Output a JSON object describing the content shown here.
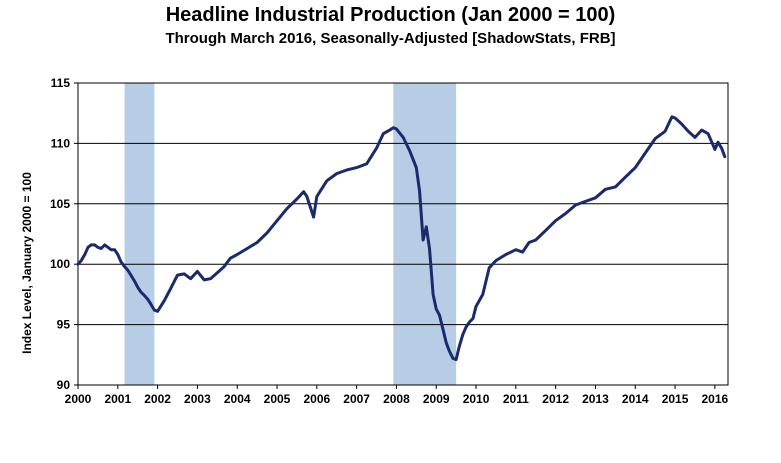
{
  "chart_data": {
    "type": "line",
    "title": "Headline Industrial Production (Jan 2000 = 100)",
    "subtitle": "Through March 2016, Seasonally-Adjusted [ShadowStats, FRB]",
    "xlabel": "",
    "ylabel": "Index Level, January 2000 = 100",
    "xlim": [
      2000,
      2016.33
    ],
    "ylim": [
      90,
      115
    ],
    "x_ticks": [
      2000,
      2001,
      2002,
      2003,
      2004,
      2005,
      2006,
      2007,
      2008,
      2009,
      2010,
      2011,
      2012,
      2013,
      2014,
      2015,
      2016
    ],
    "y_ticks": [
      90,
      95,
      100,
      105,
      110,
      115
    ],
    "grid": "horizontal",
    "legend": "none",
    "line_color": "#1a2a6c",
    "recession_color": "#b7cde6",
    "recessions": [
      {
        "start": 2001.17,
        "end": 2001.92
      },
      {
        "start": 2007.92,
        "end": 2009.5
      }
    ],
    "series": [
      {
        "x": [
          2000.0,
          2000.08,
          2000.17,
          2000.25,
          2000.33,
          2000.42,
          2000.5,
          2000.58,
          2000.67,
          2000.75,
          2000.83,
          2000.92,
          2001.0,
          2001.08,
          2001.17,
          2001.25,
          2001.33,
          2001.42,
          2001.5,
          2001.58,
          2001.67,
          2001.75,
          2001.83,
          2001.92,
          2002.0,
          2002.17,
          2002.33,
          2002.5,
          2002.67,
          2002.83,
          2003.0,
          2003.17,
          2003.33,
          2003.5,
          2003.67,
          2003.83,
          2004.0,
          2004.25,
          2004.5,
          2004.75,
          2005.0,
          2005.25,
          2005.5,
          2005.67,
          2005.75,
          2005.92,
          2006.0,
          2006.25,
          2006.5,
          2006.75,
          2007.0,
          2007.25,
          2007.5,
          2007.67,
          2007.83,
          2007.92,
          2008.0,
          2008.17,
          2008.33,
          2008.5,
          2008.58,
          2008.67,
          2008.75,
          2008.83,
          2008.92,
          2009.0,
          2009.08,
          2009.17,
          2009.25,
          2009.33,
          2009.42,
          2009.5,
          2009.58,
          2009.67,
          2009.75,
          2009.83,
          2009.92,
          2010.0,
          2010.17,
          2010.33,
          2010.5,
          2010.75,
          2011.0,
          2011.17,
          2011.33,
          2011.5,
          2011.75,
          2012.0,
          2012.25,
          2012.5,
          2012.75,
          2013.0,
          2013.25,
          2013.5,
          2013.75,
          2014.0,
          2014.25,
          2014.5,
          2014.75,
          2014.92,
          2015.0,
          2015.17,
          2015.33,
          2015.5,
          2015.67,
          2015.83,
          2016.0,
          2016.08,
          2016.17,
          2016.25
        ],
        "y": [
          100.0,
          100.3,
          100.8,
          101.4,
          101.6,
          101.6,
          101.4,
          101.3,
          101.6,
          101.4,
          101.2,
          101.2,
          100.8,
          100.2,
          99.8,
          99.5,
          99.1,
          98.6,
          98.1,
          97.7,
          97.4,
          97.1,
          96.7,
          96.2,
          96.1,
          97.0,
          98.0,
          99.1,
          99.2,
          98.8,
          99.4,
          98.7,
          98.8,
          99.3,
          99.8,
          100.5,
          100.8,
          101.3,
          101.8,
          102.6,
          103.6,
          104.6,
          105.4,
          106.0,
          105.6,
          103.9,
          105.6,
          106.9,
          107.5,
          107.8,
          108.0,
          108.3,
          109.6,
          110.8,
          111.1,
          111.3,
          111.2,
          110.5,
          109.4,
          108.0,
          106.1,
          102.0,
          103.1,
          101.3,
          97.5,
          96.3,
          95.8,
          94.6,
          93.5,
          92.8,
          92.2,
          92.1,
          93.2,
          94.2,
          94.8,
          95.2,
          95.5,
          96.5,
          97.5,
          99.7,
          100.3,
          100.8,
          101.2,
          101.0,
          101.8,
          102.0,
          102.8,
          103.6,
          104.2,
          104.9,
          105.2,
          105.5,
          106.2,
          106.4,
          107.2,
          108.0,
          109.2,
          110.4,
          111.0,
          112.2,
          112.1,
          111.6,
          111.0,
          110.5,
          111.1,
          110.8,
          109.5,
          110.1,
          109.6,
          108.9
        ]
      }
    ]
  }
}
